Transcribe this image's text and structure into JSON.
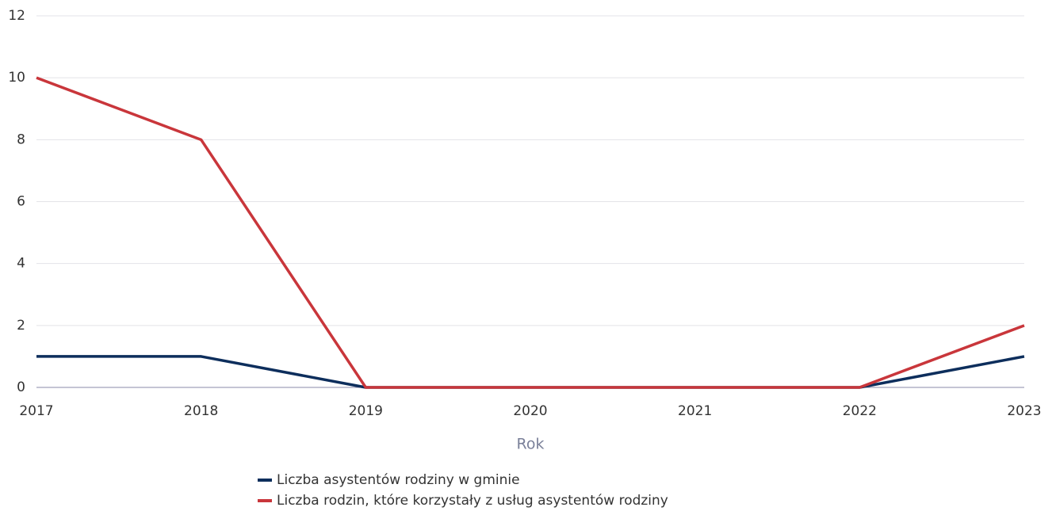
{
  "chart_data": {
    "type": "line",
    "x_label": "Rok",
    "categories": [
      "2017",
      "2018",
      "2019",
      "2020",
      "2021",
      "2022",
      "2023"
    ],
    "series": [
      {
        "name": "Liczba asystentów rodziny w gminie",
        "color": "#0d2e5c",
        "values": [
          1,
          1,
          0,
          0,
          0,
          0,
          1
        ]
      },
      {
        "name": "Liczba rodzin, które korzystały z usług asystentów rodziny",
        "color": "#c9363b",
        "values": [
          10,
          8,
          0,
          0,
          0,
          0,
          2
        ]
      }
    ],
    "ylim": [
      0,
      12
    ],
    "yticks": [
      0,
      2,
      4,
      6,
      8,
      10,
      12
    ],
    "grid": true
  }
}
